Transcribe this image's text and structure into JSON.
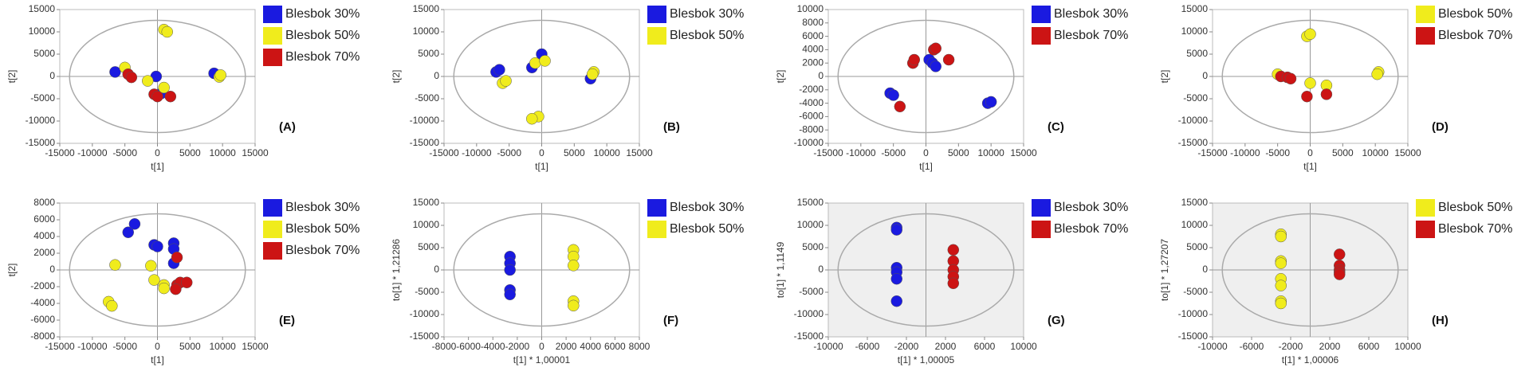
{
  "chart_data": [
    {
      "type": "scatter",
      "panel_label": "(A)",
      "xlabel": "t[1]",
      "ylabel": "t[2]",
      "plot_background": "#ffffff",
      "xlim": [
        -15000,
        15000
      ],
      "xticks": [
        -15000,
        -10000,
        -5000,
        0,
        5000,
        10000,
        15000
      ],
      "ylim": [
        -15000,
        15000
      ],
      "yticks": [
        -15000,
        -10000,
        -5000,
        0,
        5000,
        10000,
        15000
      ],
      "series": [
        {
          "name": "Blesbok 30%",
          "color": "#1a1ae0",
          "x": [
            -6500,
            -200,
            8700,
            600
          ],
          "values": [
            1000,
            0,
            700,
            -3800
          ]
        },
        {
          "name": "Blesbok 50%",
          "color": "#f0ec1c",
          "x": [
            1000,
            1500,
            -5000,
            -1500,
            1000,
            9500,
            9700
          ],
          "values": [
            10500,
            10000,
            2000,
            -1000,
            -2500,
            -100,
            300
          ]
        },
        {
          "name": "Blesbok 70%",
          "color": "#cc1414",
          "x": [
            -4500,
            -4000,
            -500,
            0,
            2000
          ],
          "values": [
            500,
            -200,
            -4000,
            -4500,
            -4500
          ]
        }
      ]
    },
    {
      "type": "scatter",
      "panel_label": "(B)",
      "xlabel": "t[1]",
      "ylabel": "t[2]",
      "plot_background": "#ffffff",
      "xlim": [
        -15000,
        15000
      ],
      "xticks": [
        -15000,
        -10000,
        -5000,
        0,
        5000,
        10000,
        15000
      ],
      "ylim": [
        -15000,
        15000
      ],
      "yticks": [
        -15000,
        -10000,
        -5000,
        0,
        5000,
        10000,
        15000
      ],
      "series": [
        {
          "name": "Blesbok 30%",
          "color": "#1a1ae0",
          "x": [
            -7000,
            -6500,
            -1500,
            0,
            7500
          ],
          "values": [
            1000,
            1500,
            2000,
            5000,
            -500
          ]
        },
        {
          "name": "Blesbok 50%",
          "color": "#f0ec1c",
          "x": [
            -6000,
            -5500,
            -1000,
            500,
            -500,
            -1500,
            8000,
            7800
          ],
          "values": [
            -1500,
            -1000,
            3000,
            3500,
            -9000,
            -9500,
            1000,
            500
          ]
        }
      ]
    },
    {
      "type": "scatter",
      "panel_label": "(C)",
      "xlabel": "t[1]",
      "ylabel": "t[2]",
      "plot_background": "#ffffff",
      "xlim": [
        -15000,
        15000
      ],
      "xticks": [
        -15000,
        -10000,
        -5000,
        0,
        5000,
        10000,
        15000
      ],
      "ylim": [
        -10000,
        10000
      ],
      "yticks": [
        -10000,
        -8000,
        -6000,
        -4000,
        -2000,
        0,
        2000,
        4000,
        6000,
        8000,
        10000
      ],
      "series": [
        {
          "name": "Blesbok 30%",
          "color": "#1a1ae0",
          "x": [
            -5500,
            -5000,
            500,
            1000,
            1500,
            9500,
            10000
          ],
          "values": [
            -2500,
            -2800,
            2500,
            2000,
            1500,
            -4000,
            -3800
          ]
        },
        {
          "name": "Blesbok 70%",
          "color": "#cc1414",
          "x": [
            -4000,
            -2000,
            -1800,
            1200,
            1500,
            3500
          ],
          "values": [
            -4500,
            2000,
            2500,
            4000,
            4200,
            2500
          ]
        }
      ]
    },
    {
      "type": "scatter",
      "panel_label": "(D)",
      "xlabel": "t[1]",
      "ylabel": "t[2]",
      "plot_background": "#ffffff",
      "xlim": [
        -15000,
        15000
      ],
      "xticks": [
        -15000,
        -10000,
        -5000,
        0,
        5000,
        10000,
        15000
      ],
      "ylim": [
        -15000,
        15000
      ],
      "yticks": [
        -15000,
        -10000,
        -5000,
        0,
        5000,
        10000,
        15000
      ],
      "series": [
        {
          "name": "Blesbok 50%",
          "color": "#f0ec1c",
          "x": [
            -5000,
            -500,
            0,
            0,
            2500,
            10500,
            10300
          ],
          "values": [
            500,
            9000,
            9500,
            -1500,
            -2000,
            1000,
            500
          ]
        },
        {
          "name": "Blesbok 70%",
          "color": "#cc1414",
          "x": [
            -4500,
            -3500,
            -3000,
            -500,
            2500
          ],
          "values": [
            0,
            -200,
            -500,
            -4500,
            -4000
          ]
        }
      ]
    },
    {
      "type": "scatter",
      "panel_label": "(E)",
      "xlabel": "t[1]",
      "ylabel": "t[2]",
      "plot_background": "#ffffff",
      "xlim": [
        -15000,
        15000
      ],
      "xticks": [
        -15000,
        -10000,
        -5000,
        0,
        5000,
        10000,
        15000
      ],
      "ylim": [
        -8000,
        8000
      ],
      "yticks": [
        -8000,
        -6000,
        -4000,
        -2000,
        0,
        2000,
        4000,
        6000,
        8000
      ],
      "series": [
        {
          "name": "Blesbok 30%",
          "color": "#1a1ae0",
          "x": [
            -4500,
            -3500,
            -500,
            0,
            2500,
            2500,
            2500
          ],
          "values": [
            4500,
            5500,
            3000,
            2800,
            3200,
            2500,
            800
          ]
        },
        {
          "name": "Blesbok 50%",
          "color": "#f0ec1c",
          "x": [
            -7500,
            -7000,
            -6500,
            -1000,
            -500,
            1000,
            1000
          ],
          "values": [
            -3800,
            -4300,
            600,
            500,
            -1200,
            -1800,
            -2200
          ]
        },
        {
          "name": "Blesbok 70%",
          "color": "#cc1414",
          "x": [
            3000,
            3000,
            3500,
            4500,
            2800
          ],
          "values": [
            1500,
            -1800,
            -1500,
            -1500,
            -2300
          ]
        }
      ]
    },
    {
      "type": "scatter",
      "panel_label": "(F)",
      "xlabel": "t[1] * 1,00001",
      "ylabel": "to[1] * 1,21286",
      "plot_background": "#ffffff",
      "xlim": [
        -8000,
        8000
      ],
      "xticks": [
        -8000,
        -6000,
        -4000,
        -2000,
        0,
        2000,
        4000,
        6000,
        8000
      ],
      "ylim": [
        -15000,
        15000
      ],
      "yticks": [
        -15000,
        -10000,
        -5000,
        0,
        5000,
        10000,
        15000
      ],
      "series": [
        {
          "name": "Blesbok 30%",
          "color": "#1a1ae0",
          "x": [
            -2600,
            -2600,
            -2600,
            -2600,
            -2600
          ],
          "values": [
            3000,
            1500,
            0,
            -4500,
            -5500
          ]
        },
        {
          "name": "Blesbok 50%",
          "color": "#f0ec1c",
          "x": [
            2600,
            2600,
            2600,
            2600,
            2600
          ],
          "values": [
            4500,
            3000,
            1000,
            -7000,
            -8000
          ]
        }
      ]
    },
    {
      "type": "scatter",
      "panel_label": "(G)",
      "xlabel": "t[1] * 1,00005",
      "ylabel": "to[1] * 1,1149",
      "plot_background": "#efefef",
      "xlim": [
        -10000,
        10000
      ],
      "xticks": [
        -10000,
        -6000,
        -2000,
        2000,
        6000,
        10000
      ],
      "ylim": [
        -15000,
        15000
      ],
      "yticks": [
        -15000,
        -10000,
        -5000,
        0,
        5000,
        10000,
        15000
      ],
      "series": [
        {
          "name": "Blesbok 30%",
          "color": "#1a1ae0",
          "x": [
            -3000,
            -3000,
            -3000,
            -3000,
            -3000,
            -3000
          ],
          "values": [
            9500,
            9000,
            500,
            -500,
            -2000,
            -7000
          ]
        },
        {
          "name": "Blesbok 70%",
          "color": "#cc1414",
          "x": [
            2800,
            2800,
            2800,
            2800,
            2800
          ],
          "values": [
            4500,
            2000,
            0,
            -1500,
            -3000
          ]
        }
      ]
    },
    {
      "type": "scatter",
      "panel_label": "(H)",
      "xlabel": "t[1] * 1,00006",
      "ylabel": "to[1] * 1,27207",
      "plot_background": "#efefef",
      "xlim": [
        -10000,
        10000
      ],
      "xticks": [
        -10000,
        -6000,
        -2000,
        2000,
        6000,
        10000
      ],
      "ylim": [
        -15000,
        15000
      ],
      "yticks": [
        -15000,
        -10000,
        -5000,
        0,
        5000,
        10000,
        15000
      ],
      "series": [
        {
          "name": "Blesbok 50%",
          "color": "#f0ec1c",
          "x": [
            -3000,
            -3000,
            -3000,
            -3000,
            -3000,
            -3000,
            -3000,
            -3000
          ],
          "values": [
            8000,
            7500,
            2000,
            1500,
            -2000,
            -3500,
            -7000,
            -7500
          ]
        },
        {
          "name": "Blesbok 70%",
          "color": "#cc1414",
          "x": [
            3000,
            3000,
            3000,
            3000,
            3000
          ],
          "values": [
            3500,
            1000,
            0,
            -500,
            -1000
          ]
        }
      ]
    }
  ]
}
